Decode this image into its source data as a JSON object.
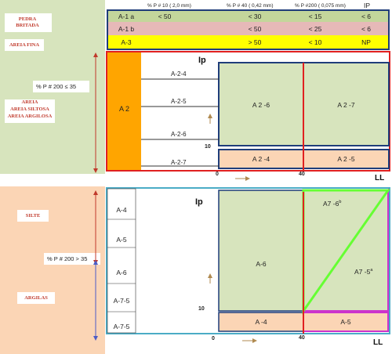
{
  "colors": {
    "left_green": "#d7e4bd",
    "left_peach": "#fbd5b5",
    "label_box": "#ffffff",
    "row1_green": "#c3d69b",
    "row2_pink": "#e6b9b8",
    "row3_yellow": "#ffff00",
    "orange": "#ffa500",
    "zone_green": "#d7e4bd",
    "zone_peach": "#fbd5b5",
    "blue_border": "#1f3d7a",
    "cyan_border": "#4bacc6",
    "red": "#e02020",
    "bright_green": "#66ff33",
    "magenta": "#cc33cc"
  },
  "header": {
    "col_p10": "% P # 10 ( 2,0 mm)",
    "col_p40": "% P # 40 ( 0,42 mm)",
    "col_p200": "% P #200 ( 0,075 mm)",
    "col_ip": "IP"
  },
  "table_rows": [
    {
      "name": "A-1 a",
      "p10": "< 50",
      "p40": "< 30",
      "p200": "< 15",
      "ip": "< 6"
    },
    {
      "name": "A-1 b",
      "p10": "",
      "p40": "< 50",
      "p200": "< 25",
      "ip": "< 6"
    },
    {
      "name": "A-3",
      "p10": "",
      "p40": "> 50",
      "p200": "< 10",
      "ip": "NP"
    }
  ],
  "side_labels": {
    "pedra_britada": "PEDRA BRITADA",
    "areia_fina": "AREIA FINA",
    "p200_le": "% P # 200 ≤ 35",
    "areia": "AREIA",
    "areia_siltosa": "AREIA SILTOSA",
    "areia_argilosa": "AREIA ARGILOSA",
    "silte": "SILTE",
    "p200_gt": "% P # 200 > 35",
    "argilas": "ARGILAS"
  },
  "upper": {
    "group": "A 2",
    "subgroups": [
      "A-2-4",
      "A-2-5",
      "A-2-6",
      "A-2-7"
    ],
    "axis_ip": "Ip",
    "axis_ll": "LL",
    "tick_0": "0",
    "tick_40": "40",
    "tick_10": "10",
    "zones": {
      "z26": "A 2 -6",
      "z27": "A 2 -7",
      "z24": "A 2 -4",
      "z25": "A 2 -5"
    }
  },
  "lower": {
    "groups": [
      "A-4",
      "A-5",
      "A-6",
      "A-7-5",
      "A-7-5"
    ],
    "axis_ip": "Ip",
    "axis_ll": "LL",
    "tick_0": "0",
    "tick_40": "40",
    "tick_10": "10",
    "zones": {
      "a6": "A-6",
      "a76": "A7 -6",
      "a76_sup": "b",
      "a75": "A7 -5",
      "a75_sup": "a",
      "a4": "A -4",
      "a5": "A-5"
    }
  }
}
